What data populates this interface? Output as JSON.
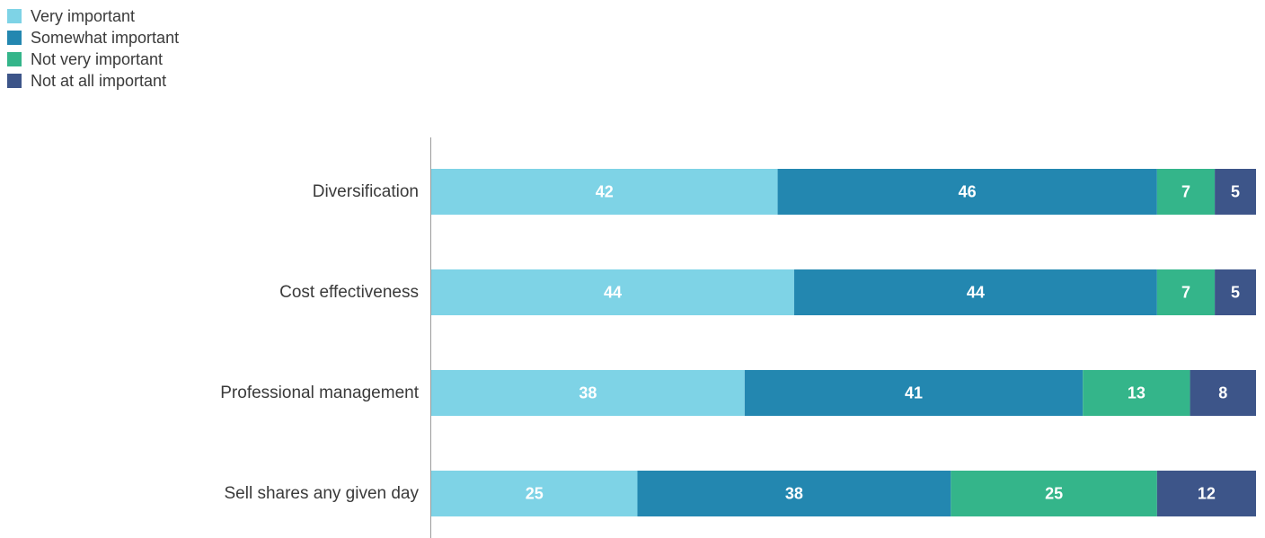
{
  "chart_data": {
    "type": "bar",
    "orientation": "horizontal",
    "stacked": true,
    "categories": [
      "Diversification",
      "Cost effectiveness",
      "Professional management",
      "Sell shares any given day"
    ],
    "series": [
      {
        "name": "Very important",
        "color": "#7ed3e6",
        "values": [
          42,
          44,
          38,
          25
        ]
      },
      {
        "name": "Somewhat important",
        "color": "#2387b0",
        "values": [
          46,
          44,
          41,
          38
        ]
      },
      {
        "name": "Not very important",
        "color": "#34b58a",
        "values": [
          7,
          7,
          13,
          25
        ]
      },
      {
        "name": "Not at all important",
        "color": "#3d5589",
        "values": [
          5,
          5,
          8,
          12
        ]
      }
    ],
    "xlim": [
      0,
      100
    ],
    "grid": false,
    "legend_position": "top-left",
    "data_labels": true
  }
}
